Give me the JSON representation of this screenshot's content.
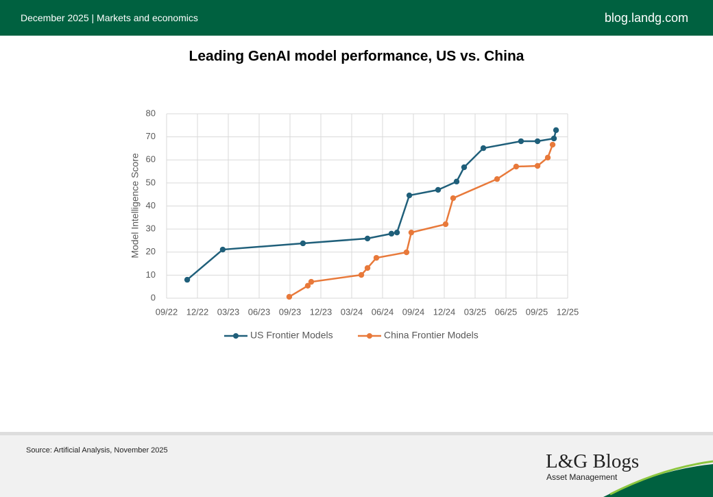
{
  "header": {
    "left": "December 2025 | Markets and economics",
    "right": "blog.landg.com"
  },
  "footer": {
    "source": "Source: Artificial Analysis, November 2025",
    "logo": "L&G Blogs",
    "tagline": "Asset Management"
  },
  "chart_data": {
    "type": "line",
    "title": "Leading GenAI model performance, US vs. China",
    "ylabel": "Model Intelligence Score",
    "xlim": [
      2022.667,
      2025.917
    ],
    "ylim": [
      0,
      80
    ],
    "xticks": [
      {
        "value": 2022.667,
        "label": "09/22"
      },
      {
        "value": 2022.917,
        "label": "12/22"
      },
      {
        "value": 2023.167,
        "label": "03/23"
      },
      {
        "value": 2023.417,
        "label": "06/23"
      },
      {
        "value": 2023.667,
        "label": "09/23"
      },
      {
        "value": 2023.917,
        "label": "12/23"
      },
      {
        "value": 2024.167,
        "label": "03/24"
      },
      {
        "value": 2024.417,
        "label": "06/24"
      },
      {
        "value": 2024.667,
        "label": "09/24"
      },
      {
        "value": 2024.917,
        "label": "12/24"
      },
      {
        "value": 2025.167,
        "label": "03/25"
      },
      {
        "value": 2025.417,
        "label": "06/25"
      },
      {
        "value": 2025.667,
        "label": "09/25"
      },
      {
        "value": 2025.917,
        "label": "12/25"
      }
    ],
    "yticks": [
      0,
      10,
      20,
      30,
      40,
      50,
      60,
      70,
      80
    ],
    "grid": true,
    "legend": "bottom",
    "series": [
      {
        "name": "US Frontier Models",
        "color": "#1f5f7a",
        "x": [
          2022.834,
          2023.122,
          2023.772,
          2024.295,
          2024.489,
          2024.534,
          2024.634,
          2024.867,
          2025.017,
          2025.078,
          2025.234,
          2025.539,
          2025.673,
          2025.806,
          2025.823
        ],
        "values": [
          8,
          21.1,
          23.8,
          25.9,
          28,
          28.5,
          44.6,
          47,
          50.6,
          56.8,
          65.1,
          68.1,
          68.1,
          69.3,
          72.9
        ]
      },
      {
        "name": "China Frontier Models",
        "color": "#e8793a",
        "x": [
          2023.661,
          2023.811,
          2023.839,
          2024.245,
          2024.295,
          2024.367,
          2024.611,
          2024.65,
          2024.928,
          2024.989,
          2025.345,
          2025.5,
          2025.673,
          2025.756,
          2025.795
        ],
        "values": [
          0.6,
          5.4,
          7.1,
          10.1,
          13.1,
          17.5,
          19.9,
          28.5,
          32.1,
          43.4,
          51.7,
          57.1,
          57.4,
          61,
          66.6
        ]
      }
    ]
  }
}
